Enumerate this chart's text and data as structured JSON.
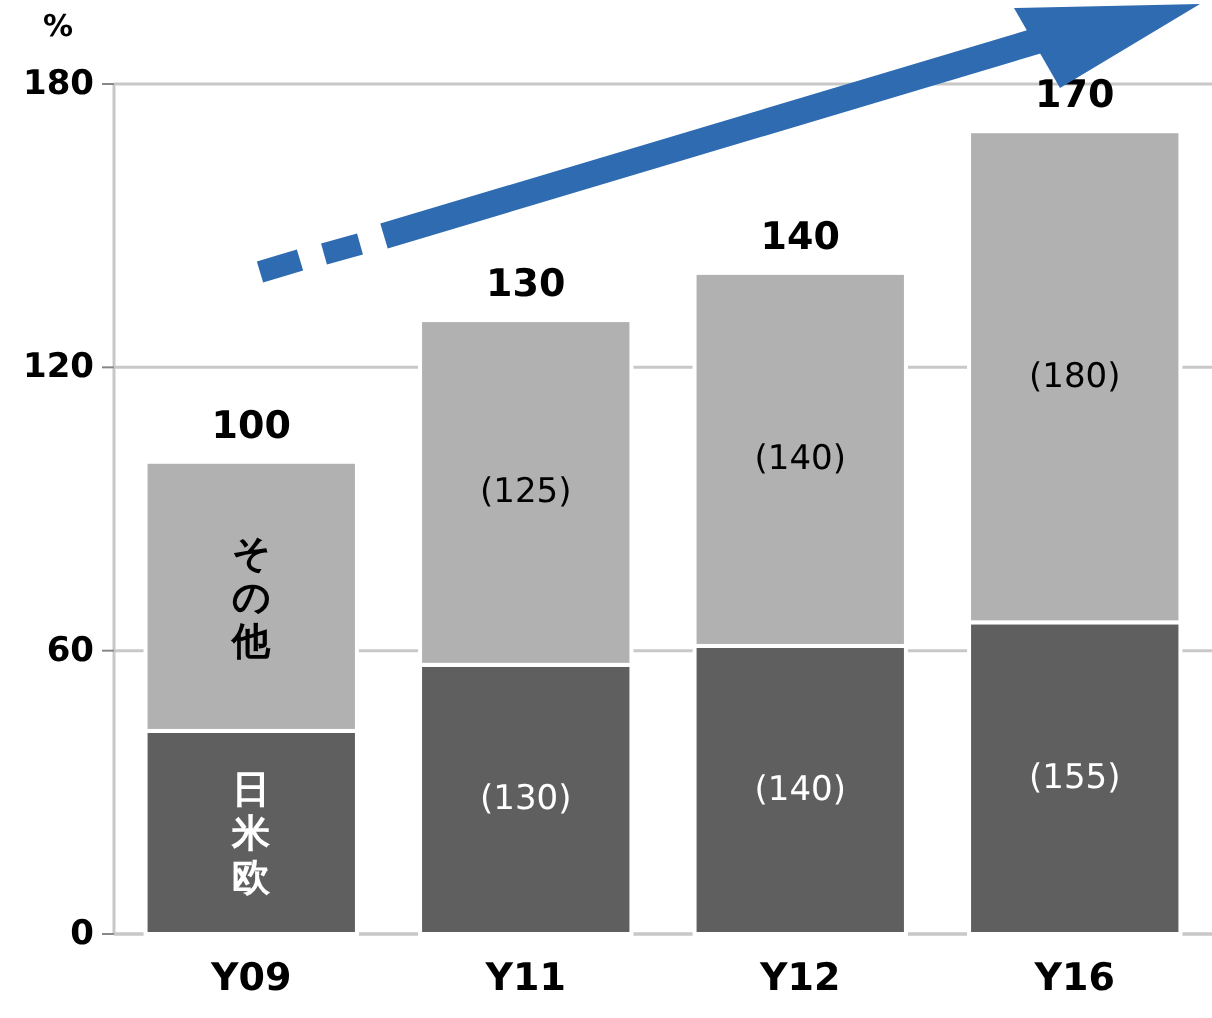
{
  "chart_data": {
    "type": "bar",
    "stacked": true,
    "ylabel": "%",
    "categories": [
      "Y09",
      "Y11",
      "Y12",
      "Y16"
    ],
    "series": [
      {
        "name": "日米欧",
        "color": "#5f5f5f",
        "values": [
          43,
          57,
          61,
          66
        ]
      },
      {
        "name": "その他",
        "color": "#b1b1b1",
        "values": [
          57,
          73,
          79,
          104
        ]
      }
    ],
    "annotations": [
      "(130)",
      "(140)",
      "(155)",
      "(125)",
      "(140)",
      "(180)"
    ],
    "totals": [
      "100",
      "130",
      "140",
      "170"
    ],
    "ylim": [
      0,
      180
    ],
    "yticks": [
      0,
      60,
      120,
      180
    ],
    "grid": "y"
  }
}
